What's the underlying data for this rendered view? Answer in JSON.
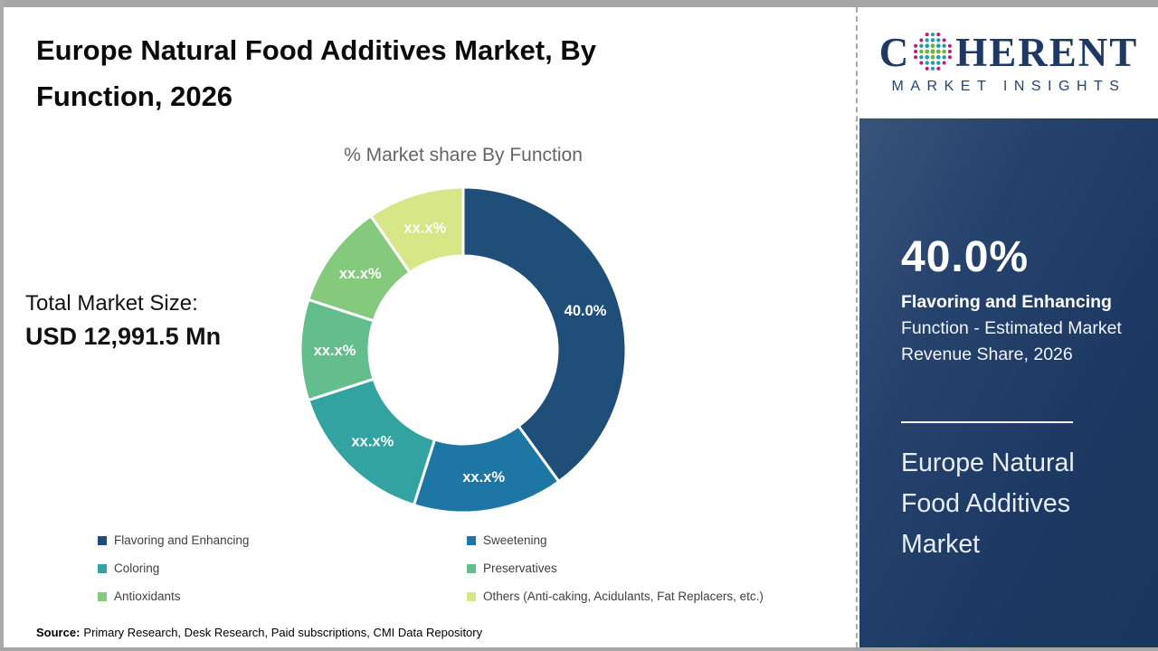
{
  "header": {
    "title": "Europe Natural Food Additives Market, By Function, 2026",
    "title_lines": [
      "Europe Natural Food Additives Market, By",
      "Function, 2026"
    ]
  },
  "main": {
    "chart_title": "% Market share By Function",
    "total_market": {
      "label": "Total Market Size:",
      "value": "USD 12,991.5 Mn"
    },
    "source": {
      "prefix": "Source:",
      "text": "Primary Research, Desk Research, Paid subscriptions, CMI Data Repository"
    }
  },
  "chart_data": {
    "type": "pie",
    "subtype": "donut",
    "title": "% Market share By Function",
    "legend_position": "bottom",
    "total_pct": 100,
    "segments": [
      {
        "name": "Flavoring and Enhancing",
        "display_label": "40.0%",
        "value_pct": 40.0,
        "color": "#1F4E79"
      },
      {
        "name": "Sweetening",
        "display_label": "xx.x%",
        "value_pct": 14.9,
        "color": "#1E76A4"
      },
      {
        "name": "Coloring",
        "display_label": "xx.x%",
        "value_pct": 15.1,
        "color": "#33A3A1"
      },
      {
        "name": "Preservatives",
        "display_label": "xx.x%",
        "value_pct": 10.0,
        "color": "#63BD8C"
      },
      {
        "name": "Antioxidants",
        "display_label": "xx.x%",
        "value_pct": 10.4,
        "color": "#85C97D"
      },
      {
        "name": "Others (Anti-caking, Acidulants, Fat Replacers, etc.)",
        "display_label": "xx.x%",
        "value_pct": 9.6,
        "color": "#D7E687"
      }
    ]
  },
  "sidebar": {
    "bg_color": "#1E3C68",
    "stat_value": "40.0%",
    "stat_label_bold": "Flavoring and Enhancing",
    "stat_label_rest": "Function - Estimated Market Revenue Share, 2026",
    "market_name": "Europe Natural Food Additives Market"
  },
  "logo": {
    "word_start": "C",
    "word_end": "HERENT",
    "tagline": "MARKET INSIGHTS",
    "text_color": "#1F3864",
    "globe_colors": {
      "teal": "#1D9FA8",
      "green": "#6CB33F",
      "magenta": "#C2187E"
    }
  }
}
